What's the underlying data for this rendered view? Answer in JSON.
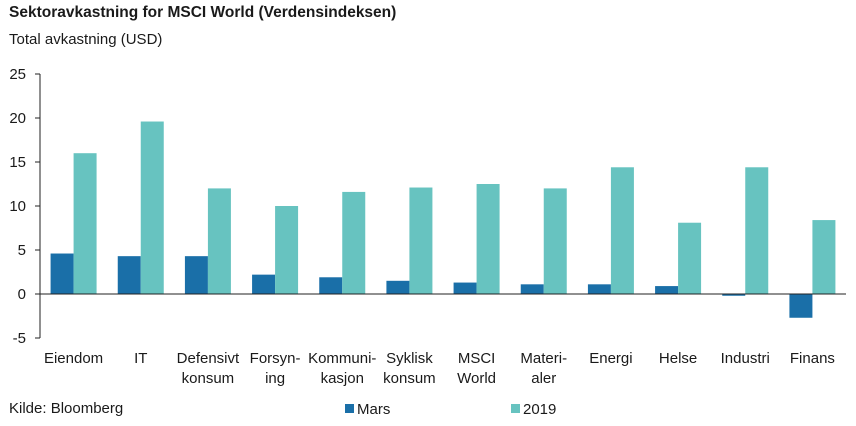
{
  "title": "Sektoravkastning for MSCI World (Verdensindeksen)",
  "subtitle": "Total avkastning (USD)",
  "source": "Kilde: Bloomberg",
  "colors": {
    "mars": "#1a6fa8",
    "y2019": "#67c3c0",
    "axis": "#222222"
  },
  "chart_data": {
    "type": "bar",
    "title": "Sektoravkastning for MSCI World (Verdensindeksen)",
    "ylabel": "Total avkastning (USD)",
    "ylim": [
      -5,
      25
    ],
    "yticks": [
      -5,
      0,
      5,
      10,
      15,
      20,
      25
    ],
    "grid": false,
    "legend": "bottom",
    "categories": [
      [
        "Eiendom"
      ],
      [
        "IT"
      ],
      [
        "Defensivt",
        "konsum"
      ],
      [
        "Forsyn-",
        "ing"
      ],
      [
        "Kommuni-",
        "kasjon"
      ],
      [
        "Syklisk",
        "konsum"
      ],
      [
        "MSCI",
        "World"
      ],
      [
        "Materi-",
        "aler"
      ],
      [
        "Energi"
      ],
      [
        "Helse"
      ],
      [
        "Industri"
      ],
      [
        "Finans"
      ]
    ],
    "series": [
      {
        "name": "Mars",
        "color": "#1a6fa8",
        "values": [
          4.6,
          4.3,
          4.3,
          2.2,
          1.9,
          1.5,
          1.3,
          1.1,
          1.1,
          0.9,
          -0.2,
          -2.7
        ]
      },
      {
        "name": "2019",
        "color": "#67c3c0",
        "values": [
          16.0,
          19.6,
          12.0,
          10.0,
          11.6,
          12.1,
          12.5,
          12.0,
          14.4,
          8.1,
          14.4,
          8.4
        ]
      }
    ]
  }
}
